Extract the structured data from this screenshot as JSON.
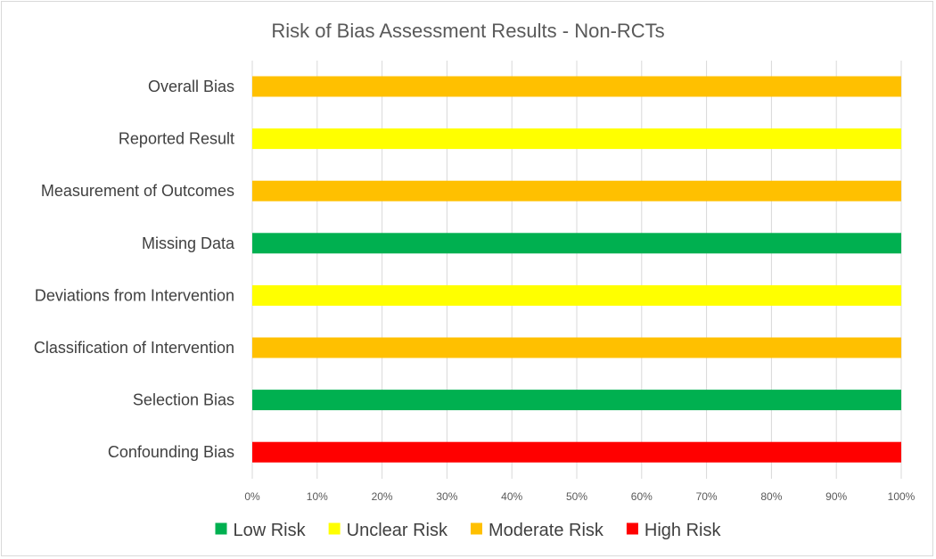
{
  "chart_data": {
    "type": "bar",
    "orientation": "horizontal",
    "stacked": true,
    "title": "Risk of Bias Assessment Results - Non-RCTs",
    "xlabel": "",
    "ylabel": "",
    "xlim": [
      0,
      100
    ],
    "x_ticks": [
      "0%",
      "10%",
      "20%",
      "30%",
      "40%",
      "50%",
      "60%",
      "70%",
      "80%",
      "90%",
      "100%"
    ],
    "grid": "vertical",
    "legend_position": "bottom",
    "categories": [
      "Overall Bias",
      "Reported Result",
      "Measurement of Outcomes",
      "Missing Data",
      "Deviations from Intervention",
      "Classification of Intervention",
      "Selection Bias",
      "Confounding Bias"
    ],
    "series": [
      {
        "name": "Low Risk",
        "color": "#00b050",
        "values": [
          0,
          0,
          0,
          100,
          0,
          0,
          100,
          0
        ]
      },
      {
        "name": "Unclear Risk",
        "color": "#ffff00",
        "values": [
          0,
          100,
          0,
          0,
          100,
          0,
          0,
          0
        ]
      },
      {
        "name": "Moderate Risk",
        "color": "#ffc000",
        "values": [
          100,
          0,
          100,
          0,
          0,
          100,
          0,
          0
        ]
      },
      {
        "name": "High Risk",
        "color": "#ff0000",
        "values": [
          0,
          0,
          0,
          0,
          0,
          0,
          0,
          100
        ]
      }
    ]
  }
}
